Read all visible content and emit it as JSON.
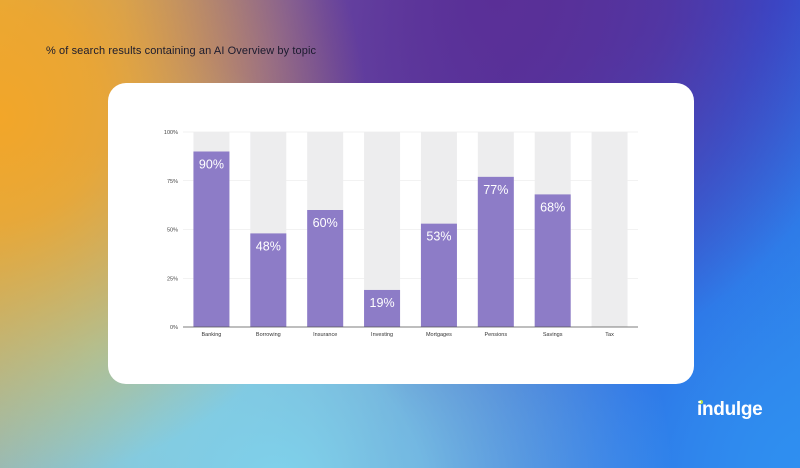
{
  "heading": "% of search results containing an AI Overview by topic",
  "brand": {
    "logo_text": "indulge",
    "accent_color": "#b9e34a"
  },
  "chart_data": {
    "type": "bar",
    "categories": [
      "Banking",
      "Borrowing",
      "Insurance",
      "Investing",
      "Mortgages",
      "Pensions",
      "Savings",
      "Tax"
    ],
    "values": [
      90,
      48,
      60,
      19,
      53,
      77,
      68,
      0
    ],
    "data_labels": [
      "90%",
      "48%",
      "60%",
      "19%",
      "53%",
      "77%",
      "68%",
      ""
    ],
    "ylim": [
      0,
      100
    ],
    "yticks": [
      0,
      25,
      50,
      75,
      100
    ],
    "ytick_labels": [
      "0%",
      "25%",
      "50%",
      "75%",
      "100%"
    ],
    "grid": true,
    "legend": "none",
    "colors": {
      "bar": "#8d7cc7",
      "background_bar": "#ededee",
      "grid": "#e6e6e6",
      "axis": "#555555"
    }
  }
}
